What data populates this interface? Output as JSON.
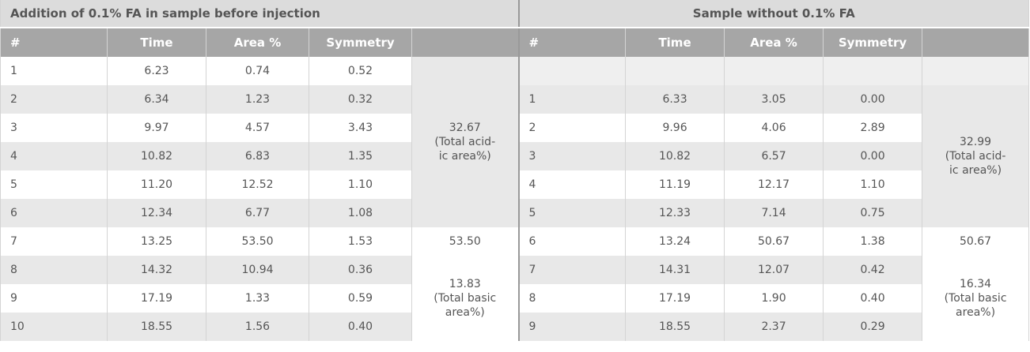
{
  "left": {
    "title": "Addition of 0.1% FA in sample before injection",
    "headers": [
      "#",
      "Time",
      "Area %",
      "Symmetry"
    ],
    "rows": [
      [
        "1",
        "6.23",
        "0.74",
        "0.52"
      ],
      [
        "2",
        "6.34",
        "1.23",
        "0.32"
      ],
      [
        "3",
        "9.97",
        "4.57",
        "3.43"
      ],
      [
        "4",
        "10.82",
        "6.83",
        "1.35"
      ],
      [
        "5",
        "11.20",
        "12.52",
        "1.10"
      ],
      [
        "6",
        "12.34",
        "6.77",
        "1.08"
      ],
      [
        "7",
        "13.25",
        "53.50",
        "1.53"
      ],
      [
        "8",
        "14.32",
        "10.94",
        "0.36"
      ],
      [
        "9",
        "17.19",
        "1.33",
        "0.59"
      ],
      [
        "10",
        "18.55",
        "1.56",
        "0.40"
      ]
    ],
    "summaries": [
      [
        "32.67",
        "(Total acid-",
        "ic area%)"
      ],
      [
        "53.50"
      ],
      [
        "13.83",
        "(Total basic",
        "area%)"
      ]
    ]
  },
  "right": {
    "title": "Sample without 0.1% FA",
    "headers": [
      "#",
      "Time",
      "Area %",
      "Symmetry"
    ],
    "rows": [
      null,
      [
        "1",
        "6.33",
        "3.05",
        "0.00"
      ],
      [
        "2",
        "9.96",
        "4.06",
        "2.89"
      ],
      [
        "3",
        "10.82",
        "6.57",
        "0.00"
      ],
      [
        "4",
        "11.19",
        "12.17",
        "1.10"
      ],
      [
        "5",
        "12.33",
        "7.14",
        "0.75"
      ],
      [
        "6",
        "13.24",
        "50.67",
        "1.38"
      ],
      [
        "7",
        "14.31",
        "12.07",
        "0.42"
      ],
      [
        "8",
        "17.19",
        "1.90",
        "0.40"
      ],
      [
        "9",
        "18.55",
        "2.37",
        "0.29"
      ]
    ],
    "summaries": [
      [
        "32.99",
        "(Total acid-",
        "ic area%)"
      ],
      [
        "50.67"
      ],
      [
        "16.34",
        "(Total basic",
        "area%)"
      ]
    ]
  }
}
